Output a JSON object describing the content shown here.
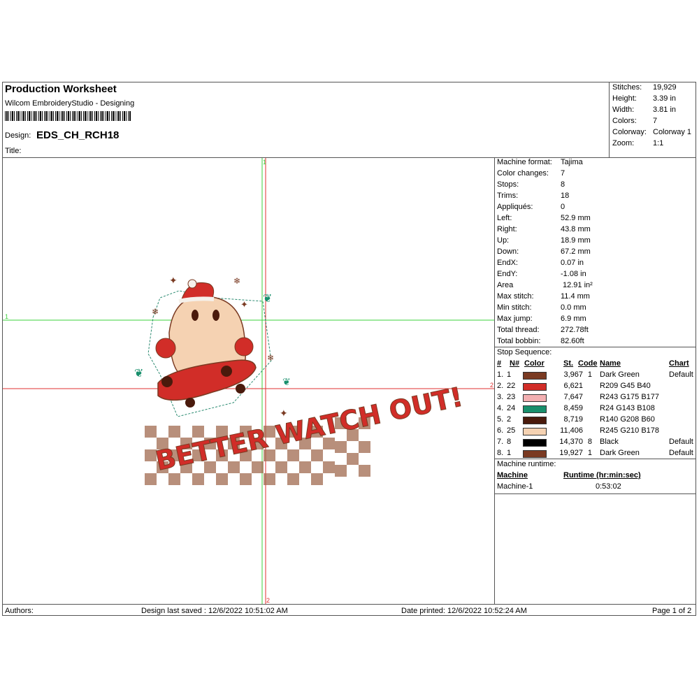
{
  "header": {
    "title": "Production Worksheet",
    "software": "Wilcom EmbroideryStudio - Designing",
    "design_label": "Design:",
    "design_name": "EDS_CH_RCH18",
    "title_label": "Title:"
  },
  "summary": [
    {
      "label": "Stitches:",
      "value": "19,929"
    },
    {
      "label": "Height:",
      "value": "3.39 in"
    },
    {
      "label": "Width:",
      "value": "3.81 in"
    },
    {
      "label": "Colors:",
      "value": "7"
    },
    {
      "label": "Colorway:",
      "value": "Colorway 1"
    },
    {
      "label": "Zoom:",
      "value": "1:1"
    }
  ],
  "machine_info": [
    {
      "label": "Machine format:",
      "value": "Tajima"
    },
    {
      "label": "Color changes:",
      "value": "7"
    },
    {
      "label": "Stops:",
      "value": "8"
    },
    {
      "label": "Trims:",
      "value": "18"
    },
    {
      "label": "Appliqués:",
      "value": "0"
    },
    {
      "label": "Left:",
      "value": "52.9 mm"
    },
    {
      "label": "Right:",
      "value": "43.8 mm"
    },
    {
      "label": "Up:",
      "value": "18.9 mm"
    },
    {
      "label": "Down:",
      "value": "67.2 mm"
    },
    {
      "label": "EndX:",
      "value": "0.07 in"
    },
    {
      "label": "EndY:",
      "value": "-1.08 in"
    },
    {
      "label": "Area",
      "value": "12.91 in²"
    },
    {
      "label": "Max stitch:",
      "value": "11.4 mm"
    },
    {
      "label": "Min stitch:",
      "value": "0.0 mm"
    },
    {
      "label": "Max jump:",
      "value": "6.9 mm"
    },
    {
      "label": "Total thread:",
      "value": "272.78ft"
    },
    {
      "label": "Total bobbin:",
      "value": "82.60ft"
    }
  ],
  "stop_sequence": {
    "title": "Stop Sequence:",
    "headers": {
      "num": "#",
      "n": "N#",
      "color": "Color",
      "st": "St.",
      "code": "Code",
      "name": "Name",
      "chart": "Chart"
    },
    "rows": [
      {
        "num": "1.",
        "n": "1",
        "color": "#7a3a22",
        "st": "3,967",
        "code": "1",
        "name": "Dark Green",
        "chart": "Default"
      },
      {
        "num": "2.",
        "n": "22",
        "color": "#d12d28",
        "st": "6,621",
        "code": "",
        "name": "R209 G45 B40",
        "chart": ""
      },
      {
        "num": "3.",
        "n": "23",
        "color": "#f3afb1",
        "st": "7,647",
        "code": "",
        "name": "R243 G175 B177",
        "chart": ""
      },
      {
        "num": "4.",
        "n": "24",
        "color": "#188f6c",
        "st": "8,459",
        "code": "",
        "name": "R24 G143 B108",
        "chart": ""
      },
      {
        "num": "5.",
        "n": "2",
        "color": "#4a1a0c",
        "st": "8,719",
        "code": "",
        "name": "R140 G208 B60",
        "chart": ""
      },
      {
        "num": "6.",
        "n": "25",
        "color": "#f5d2b2",
        "st": "11,406",
        "code": "",
        "name": "R245 G210 B178",
        "chart": ""
      },
      {
        "num": "7.",
        "n": "8",
        "color": "#000000",
        "st": "14,370",
        "code": "8",
        "name": "Black",
        "chart": "Default"
      },
      {
        "num": "8.",
        "n": "1",
        "color": "#7a3a22",
        "st": "19,927",
        "code": "1",
        "name": "Dark Green",
        "chart": "Default"
      }
    ]
  },
  "runtime": {
    "title": "Machine runtime:",
    "machine_header": "Machine",
    "runtime_header": "Runtime (hr:min:sec)",
    "machine": "Machine-1",
    "time": "0:53:02"
  },
  "footer": {
    "authors": "Authors:",
    "saved": "Design last saved : 12/6/2022 10:51:02 AM",
    "printed": "Date printed: 12/6/2022 10:52:24 AM",
    "page": "Page 1 of 2"
  },
  "design_artwork": {
    "guide_labels": [
      "1",
      "2",
      "1",
      "2"
    ],
    "lettering": "BETTER WATCH OUT!"
  }
}
